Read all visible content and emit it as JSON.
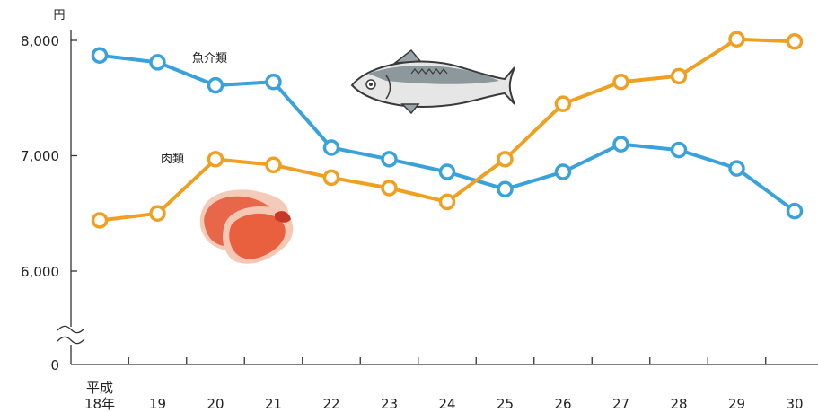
{
  "chart_data": {
    "type": "line",
    "ylabel": "円",
    "categories_prefix": "平成",
    "categories": [
      "18年",
      "19",
      "20",
      "21",
      "22",
      "23",
      "24",
      "25",
      "26",
      "27",
      "28",
      "29",
      "30"
    ],
    "y_ticks": [
      "8,000",
      "7,000",
      "6,000",
      "0"
    ],
    "y_axis_break": true,
    "ylim": [
      5000,
      8000
    ],
    "grid": false,
    "legend": "inline labels",
    "series": [
      {
        "name": "魚介類",
        "color": "#3aa2db",
        "icon": "fish-icon",
        "values": [
          7870,
          7810,
          7610,
          7640,
          7070,
          6970,
          6860,
          6710,
          6860,
          7100,
          7050,
          6890,
          6520
        ]
      },
      {
        "name": "肉類",
        "color": "#f0a020",
        "icon": "meat-icon",
        "values": [
          6440,
          6500,
          6970,
          6920,
          6810,
          6720,
          6600,
          6970,
          7450,
          7640,
          7690,
          8010,
          7990
        ]
      }
    ]
  }
}
